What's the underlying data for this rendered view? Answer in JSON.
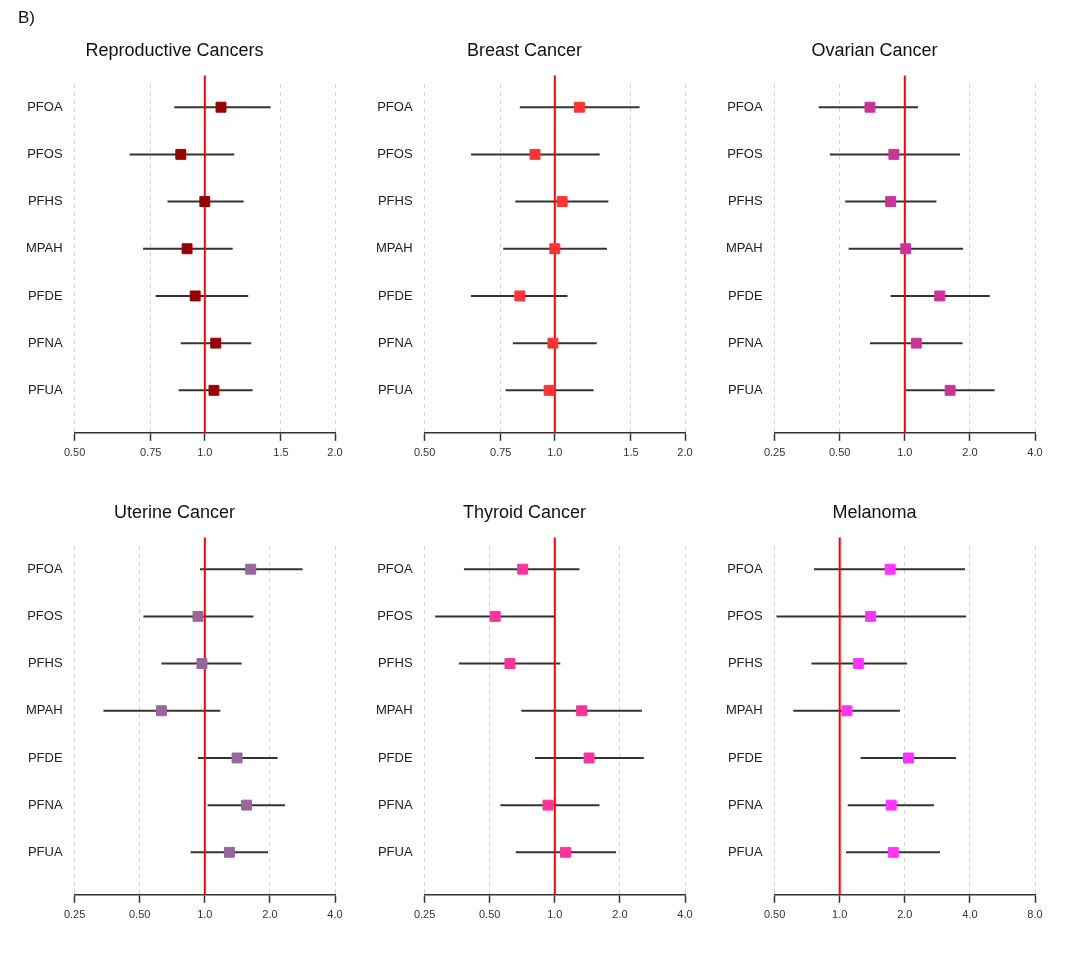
{
  "chart_data": [
    {
      "type": "scatter",
      "title": "Reproductive Cancers",
      "annotations": [
        "B)"
      ],
      "orientation": "horizontal",
      "categories": [
        "PFOA",
        "PFOS",
        "PFHS",
        "MPAH",
        "PFDE",
        "PFNA",
        "PFUA"
      ],
      "values": [
        1.09,
        0.88,
        1.0,
        0.91,
        0.95,
        1.06,
        1.05
      ],
      "errors": [
        [
          0.85,
          1.42
        ],
        [
          0.67,
          1.17
        ],
        [
          0.82,
          1.23
        ],
        [
          0.72,
          1.16
        ],
        [
          0.77,
          1.26
        ],
        [
          0.88,
          1.28
        ],
        [
          0.87,
          1.29
        ]
      ],
      "color": "#990000",
      "log": "x",
      "xlim": [
        0.5,
        2
      ],
      "xticks": [
        {
          "value": 0.5,
          "label": "0.50"
        },
        0.75,
        {
          "value": 1,
          "label": "1.0"
        },
        1.5,
        {
          "value": 2,
          "label": "2.0"
        }
      ],
      "grid": "x",
      "marker": "square",
      "ref_lines": [
        {
          "axis": "x",
          "value": 1,
          "color": "#ff0000"
        }
      ]
    },
    {
      "type": "scatter",
      "title": "Breast Cancer",
      "orientation": "horizontal",
      "categories": [
        "PFOA",
        "PFOS",
        "PFHS",
        "MPAH",
        "PFDE",
        "PFNA",
        "PFUA"
      ],
      "values": [
        1.14,
        0.9,
        1.04,
        1.0,
        0.83,
        0.99,
        0.97
      ],
      "errors": [
        [
          0.83,
          1.57
        ],
        [
          0.64,
          1.27
        ],
        [
          0.81,
          1.33
        ],
        [
          0.76,
          1.32
        ],
        [
          0.64,
          1.07
        ],
        [
          0.8,
          1.25
        ],
        [
          0.77,
          1.23
        ]
      ],
      "color": "#ff3333",
      "log": "x",
      "xlim": [
        0.5,
        2
      ],
      "xticks": [
        {
          "value": 0.5,
          "label": "0.50"
        },
        0.75,
        {
          "value": 1,
          "label": "1.0"
        },
        1.5,
        {
          "value": 2,
          "label": "2.0"
        }
      ],
      "grid": "x",
      "marker": "square",
      "ref_lines": [
        {
          "axis": "x",
          "value": 1,
          "color": "#ff0000"
        }
      ]
    },
    {
      "type": "scatter",
      "title": "Ovarian Cancer",
      "orientation": "horizontal",
      "categories": [
        "PFOA",
        "PFOS",
        "PFHS",
        "MPAH",
        "PFDE",
        "PFNA",
        "PFUA"
      ],
      "values": [
        0.69,
        0.89,
        0.86,
        1.01,
        1.45,
        1.13,
        1.62
      ],
      "errors": [
        [
          0.4,
          1.15
        ],
        [
          0.45,
          1.8
        ],
        [
          0.53,
          1.4
        ],
        [
          0.55,
          1.86
        ],
        [
          0.86,
          2.47
        ],
        [
          0.69,
          1.85
        ],
        [
          1.01,
          2.6
        ]
      ],
      "color": "#cc3399",
      "log": "x",
      "xlim": [
        0.25,
        4
      ],
      "xticks": [
        0.25,
        {
          "value": 0.5,
          "label": "0.50"
        },
        {
          "value": 1,
          "label": "1.0"
        },
        {
          "value": 2,
          "label": "2.0"
        },
        {
          "value": 4,
          "label": "4.0"
        }
      ],
      "grid": "x",
      "marker": "square",
      "ref_lines": [
        {
          "axis": "x",
          "value": 1,
          "color": "#ff0000"
        }
      ]
    },
    {
      "type": "scatter",
      "title": "Uterine Cancer",
      "orientation": "horizontal",
      "categories": [
        "PFOA",
        "PFOS",
        "PFHS",
        "MPAH",
        "PFDE",
        "PFNA",
        "PFUA"
      ],
      "values": [
        1.63,
        0.93,
        0.97,
        0.63,
        1.41,
        1.56,
        1.3
      ],
      "errors": [
        [
          0.95,
          2.83
        ],
        [
          0.52,
          1.68
        ],
        [
          0.63,
          1.48
        ],
        [
          0.34,
          1.18
        ],
        [
          0.93,
          2.17
        ],
        [
          1.03,
          2.35
        ],
        [
          0.86,
          1.96
        ]
      ],
      "color": "#996699",
      "log": "x",
      "xlim": [
        0.25,
        4
      ],
      "xticks": [
        0.25,
        {
          "value": 0.5,
          "label": "0.50"
        },
        {
          "value": 1,
          "label": "1.0"
        },
        {
          "value": 2,
          "label": "2.0"
        },
        {
          "value": 4,
          "label": "4.0"
        }
      ],
      "grid": "x",
      "marker": "square",
      "ref_lines": [
        {
          "axis": "x",
          "value": 1,
          "color": "#ff0000"
        }
      ]
    },
    {
      "type": "scatter",
      "title": "Thyroid Cancer",
      "orientation": "horizontal",
      "categories": [
        "PFOA",
        "PFOS",
        "PFHS",
        "MPAH",
        "PFDE",
        "PFNA",
        "PFUA"
      ],
      "values": [
        0.71,
        0.53,
        0.62,
        1.33,
        1.44,
        0.93,
        1.12
      ],
      "errors": [
        [
          0.38,
          1.3
        ],
        [
          0.28,
          1.0
        ],
        [
          0.36,
          1.06
        ],
        [
          0.7,
          2.53
        ],
        [
          0.81,
          2.58
        ],
        [
          0.56,
          1.61
        ],
        [
          0.66,
          1.92
        ]
      ],
      "color": "#ff3399",
      "log": "x",
      "xlim": [
        0.25,
        4
      ],
      "xticks": [
        0.25,
        {
          "value": 0.5,
          "label": "0.50"
        },
        {
          "value": 1,
          "label": "1.0"
        },
        {
          "value": 2,
          "label": "2.0"
        },
        {
          "value": 4,
          "label": "4.0"
        }
      ],
      "grid": "x",
      "marker": "square",
      "ref_lines": [
        {
          "axis": "x",
          "value": 1,
          "color": "#ff0000"
        }
      ]
    },
    {
      "type": "scatter",
      "title": "Melanoma",
      "orientation": "horizontal",
      "categories": [
        "PFOA",
        "PFOS",
        "PFHS",
        "MPAH",
        "PFDE",
        "PFNA",
        "PFUA"
      ],
      "values": [
        1.71,
        1.39,
        1.22,
        1.08,
        2.08,
        1.73,
        1.77
      ],
      "errors": [
        [
          0.76,
          3.8
        ],
        [
          0.51,
          3.84
        ],
        [
          0.74,
          2.05
        ],
        [
          0.61,
          1.9
        ],
        [
          1.25,
          3.45
        ],
        [
          1.09,
          2.73
        ],
        [
          1.07,
          2.91
        ]
      ],
      "color": "#ff33ff",
      "log": "x",
      "xlim": [
        0.5,
        8
      ],
      "xticks": [
        {
          "value": 0.5,
          "label": "0.50"
        },
        {
          "value": 1,
          "label": "1.0"
        },
        {
          "value": 2,
          "label": "2.0"
        },
        {
          "value": 4,
          "label": "4.0"
        },
        {
          "value": 8,
          "label": "8.0"
        }
      ],
      "grid": "x",
      "marker": "square",
      "ref_lines": [
        {
          "axis": "x",
          "value": 1,
          "color": "#ff0000"
        }
      ]
    }
  ]
}
